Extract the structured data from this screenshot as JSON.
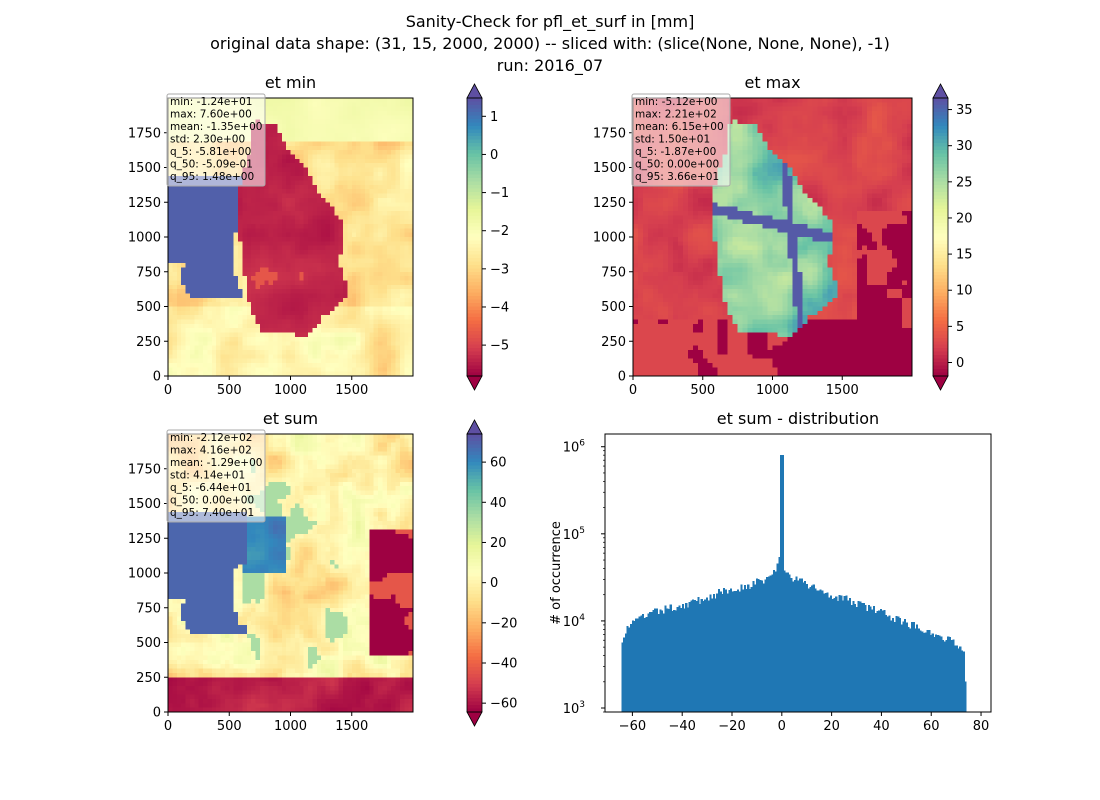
{
  "figure": {
    "title_lines": [
      "Sanity-Check for pfl_et_surf in [mm]",
      "original data shape: (31, 15, 2000, 2000) -- sliced with: (slice(None, None, None), -1)",
      "run: 2016_07"
    ]
  },
  "colors": {
    "spectral": [
      "#9e0142",
      "#d53e4f",
      "#f46d43",
      "#fdae61",
      "#fee08b",
      "#ffffbf",
      "#e6f598",
      "#abdda4",
      "#66c2a5",
      "#3288bd",
      "#5e4fa2"
    ],
    "hist_bar": "#1f77b4",
    "stats_box_bg": "#ffffff",
    "stats_box_border": "#aaaaaa"
  },
  "chart_data": [
    {
      "type": "heatmap",
      "title": "et min",
      "x_ticks": [
        "0",
        "500",
        "1000",
        "1500"
      ],
      "y_ticks": [
        "0",
        "250",
        "500",
        "750",
        "1000",
        "1250",
        "1500",
        "1750"
      ],
      "xlim": [
        0,
        2000
      ],
      "ylim": [
        0,
        2000
      ],
      "colorbar": {
        "min": -5.81,
        "max": 1.48,
        "ticks": [
          1,
          0,
          -1,
          -2,
          -3,
          -4,
          -5
        ],
        "extend": "both",
        "cmap": "Spectral"
      },
      "stats": [
        "min: -1.24e+01",
        "max: 7.60e+00",
        "mean: -1.35e+00",
        "std: 2.30e+00",
        "q_5: -5.81e+00",
        "q_50: -5.09e-01",
        "q_95: 1.48e+00"
      ]
    },
    {
      "type": "heatmap",
      "title": "et max",
      "x_ticks": [
        "0",
        "500",
        "1000",
        "1500"
      ],
      "y_ticks": [
        "0",
        "250",
        "500",
        "750",
        "1000",
        "1250",
        "1500",
        "1750"
      ],
      "xlim": [
        0,
        2000
      ],
      "ylim": [
        0,
        2000
      ],
      "colorbar": {
        "min": -1.87,
        "max": 36.6,
        "ticks": [
          35,
          30,
          25,
          20,
          15,
          10,
          5,
          0
        ],
        "extend": "both",
        "cmap": "Spectral"
      },
      "stats": [
        "min: -5.12e+00",
        "max: 2.21e+02",
        "mean: 6.15e+00",
        "std: 1.50e+01",
        "q_5: -1.87e+00",
        "q_50: 0.00e+00",
        "q_95: 3.66e+01"
      ]
    },
    {
      "type": "heatmap",
      "title": "et sum",
      "x_ticks": [
        "0",
        "500",
        "1000",
        "1500"
      ],
      "y_ticks": [
        "0",
        "250",
        "500",
        "750",
        "1000",
        "1250",
        "1500",
        "1750"
      ],
      "xlim": [
        0,
        2000
      ],
      "ylim": [
        0,
        2000
      ],
      "colorbar": {
        "min": -64.4,
        "max": 74.0,
        "ticks": [
          60,
          40,
          20,
          0,
          -20,
          -40,
          -60
        ],
        "extend": "both",
        "cmap": "Spectral"
      },
      "stats": [
        "min: -2.12e+02",
        "max: 4.16e+02",
        "mean: -1.29e+00",
        "std: 4.14e+01",
        "q_5: -6.44e+01",
        "q_50: 0.00e+00",
        "q_95: 7.40e+01"
      ]
    },
    {
      "type": "bar",
      "title": "et sum - distribution",
      "xlabel": "",
      "ylabel": "# of occurrence",
      "yscale": "log",
      "xlim": [
        -71,
        84
      ],
      "ylim": [
        900,
        1400000
      ],
      "x_ticks": [
        -60,
        -40,
        -20,
        0,
        20,
        40,
        60,
        80
      ],
      "y_ticks": [
        1000,
        10000,
        100000,
        1000000
      ],
      "y_tick_labels": [
        [
          "10",
          "3"
        ],
        [
          "10",
          "4"
        ],
        [
          "10",
          "5"
        ],
        [
          "10",
          "6"
        ]
      ],
      "bin_range": [
        -64.4,
        74.0
      ],
      "bin_count": 200,
      "profile": [
        [
          -64.4,
          6000
        ],
        [
          -62,
          8500
        ],
        [
          -55,
          11500
        ],
        [
          -45,
          14000
        ],
        [
          -35,
          16500
        ],
        [
          -25,
          21000
        ],
        [
          -15,
          25000
        ],
        [
          -8,
          29000
        ],
        [
          -4,
          33000
        ],
        [
          -2,
          42000
        ],
        [
          -1,
          55000
        ],
        [
          -0.4,
          60000
        ],
        [
          0,
          800000
        ],
        [
          0.4,
          36000
        ],
        [
          2,
          34000
        ],
        [
          10,
          26000
        ],
        [
          20,
          20000
        ],
        [
          30,
          16000
        ],
        [
          40,
          12500
        ],
        [
          50,
          9500
        ],
        [
          60,
          7500
        ],
        [
          70,
          5500
        ],
        [
          73,
          4800
        ],
        [
          74.0,
          1500
        ]
      ]
    }
  ]
}
